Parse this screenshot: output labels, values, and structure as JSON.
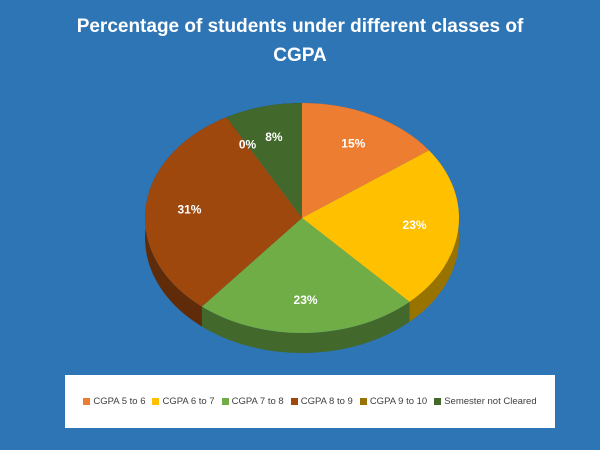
{
  "chart_data": {
    "type": "pie",
    "title": "Percentage of students under different classes of CGPA",
    "categories": [
      "CGPA 5 to 6",
      "CGPA 6 to 7",
      "CGPA 7 to 8",
      "CGPA 8 to 9",
      "CGPA 9 to 10",
      "Semester not Cleared"
    ],
    "values": [
      15,
      23,
      23,
      31,
      0,
      8
    ],
    "value_labels": [
      "15%",
      "23%",
      "23%",
      "31%",
      "0%",
      "8%"
    ],
    "colors": [
      "#ed7d31",
      "#ffc000",
      "#70ad47",
      "#9e480e",
      "#997300",
      "#43682b"
    ]
  }
}
